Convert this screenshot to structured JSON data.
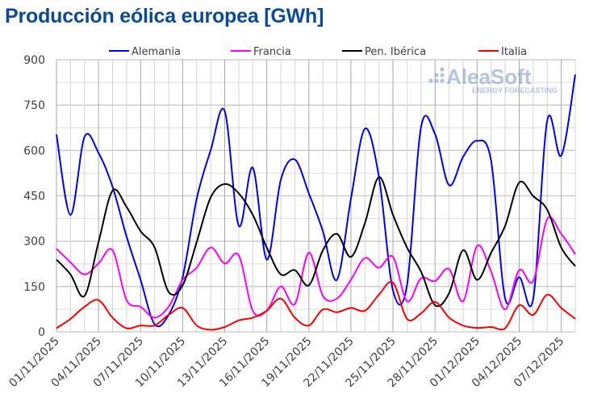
{
  "chart_data": {
    "type": "line",
    "title": "Producción eólica europea [GWh]",
    "xlabel": "",
    "ylabel": "",
    "ylim": [
      0,
      900
    ],
    "yticks": [
      0,
      150,
      300,
      450,
      600,
      750,
      900
    ],
    "grid": true,
    "legend_position": "top",
    "x": [
      "01/11/2025",
      "02/11/2025",
      "03/11/2025",
      "04/11/2025",
      "05/11/2025",
      "06/11/2025",
      "07/11/2025",
      "08/11/2025",
      "09/11/2025",
      "10/11/2025",
      "11/11/2025",
      "12/11/2025",
      "13/11/2025",
      "14/11/2025",
      "15/11/2025",
      "16/11/2025",
      "17/11/2025",
      "18/11/2025",
      "19/11/2025",
      "20/11/2025",
      "21/11/2025",
      "22/11/2025",
      "23/11/2025",
      "24/11/2025",
      "25/11/2025",
      "26/11/2025",
      "27/11/2025",
      "28/11/2025",
      "29/11/2025",
      "30/11/2025",
      "01/12/2025",
      "02/12/2025",
      "03/12/2025",
      "04/12/2025",
      "05/12/2025",
      "06/12/2025",
      "07/12/2025",
      "08/12/2025"
    ],
    "xtick_labels": [
      "01/11/2025",
      "04/11/2025",
      "07/11/2025",
      "10/11/2025",
      "13/11/2025",
      "16/11/2025",
      "19/11/2025",
      "22/11/2025",
      "25/11/2025",
      "28/11/2025",
      "01/12/2025",
      "04/12/2025",
      "07/12/2025"
    ],
    "series": [
      {
        "name": "Alemania",
        "color": "#0000ff",
        "values": [
          653,
          387,
          645,
          592,
          480,
          315,
          172,
          25,
          56,
          181,
          440,
          601,
          730,
          351,
          543,
          239,
          503,
          570,
          458,
          333,
          172,
          440,
          672,
          512,
          137,
          154,
          677,
          654,
          485,
          579,
          632,
          565,
          110,
          181,
          110,
          699,
          583,
          851
        ]
      },
      {
        "name": "Francia",
        "color": "#ff00ff",
        "values": [
          275,
          230,
          190,
          226,
          270,
          105,
          83,
          47,
          83,
          172,
          212,
          279,
          226,
          253,
          70,
          70,
          150,
          92,
          262,
          119,
          110,
          172,
          244,
          212,
          248,
          101,
          177,
          168,
          208,
          101,
          284,
          199,
          74,
          204,
          168,
          373,
          324,
          257
        ]
      },
      {
        "name": "Pen. Ibérica",
        "color": "#000000",
        "values": [
          239,
          190,
          119,
          297,
          467,
          413,
          333,
          279,
          132,
          154,
          297,
          445,
          489,
          458,
          387,
          279,
          190,
          204,
          154,
          270,
          324,
          248,
          360,
          512,
          387,
          279,
          199,
          88,
          128,
          270,
          172,
          262,
          351,
          494,
          449,
          404,
          279,
          217
        ]
      },
      {
        "name": "Italia",
        "color": "#ff0000",
        "values": [
          12,
          43,
          83,
          105,
          47,
          12,
          21,
          21,
          56,
          79,
          21,
          7,
          16,
          38,
          47,
          70,
          110,
          47,
          21,
          74,
          65,
          79,
          70,
          123,
          163,
          43,
          61,
          99,
          47,
          21,
          13,
          16,
          12,
          88,
          56,
          123,
          79,
          43
        ]
      }
    ]
  },
  "logo": {
    "name": "AleaSoft",
    "tagline": "ENERGY FORECASTING"
  }
}
